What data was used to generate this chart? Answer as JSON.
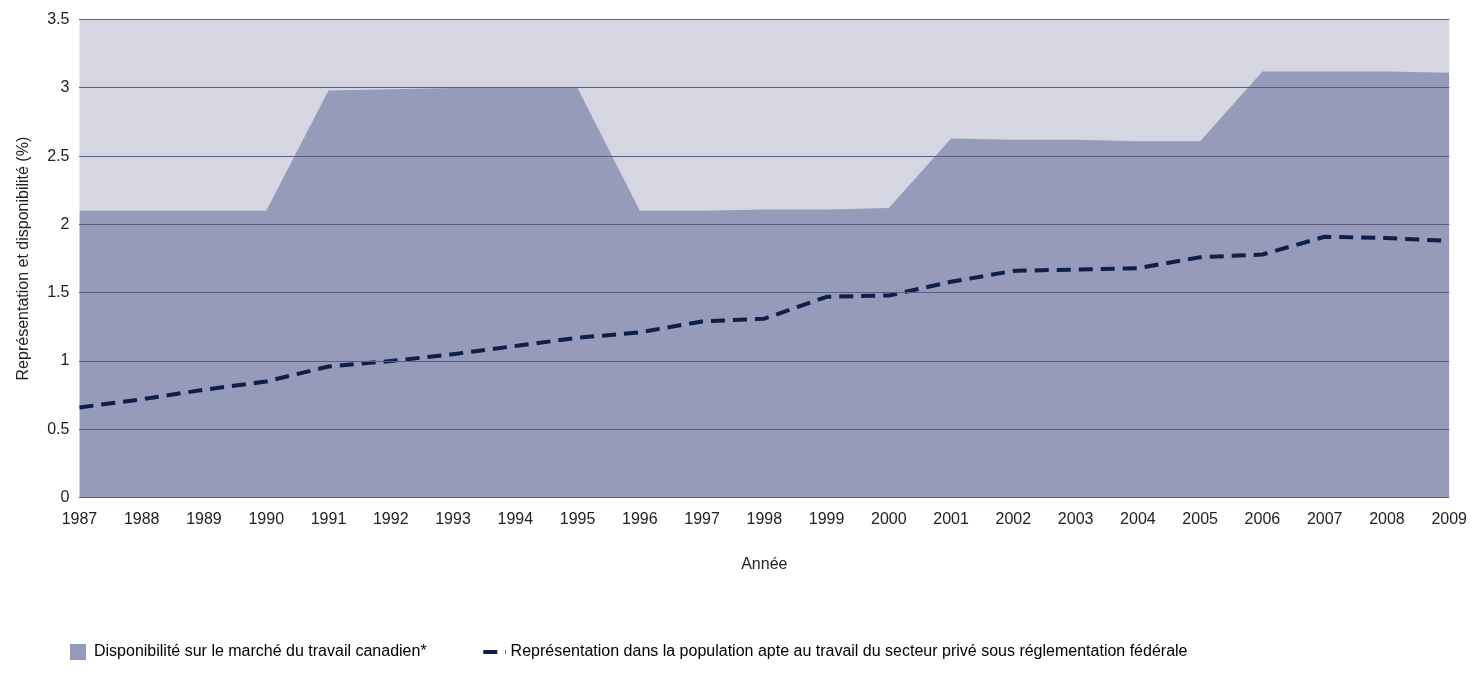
{
  "chart_data": {
    "type": "area",
    "xlabel": "Année",
    "ylabel": "Représentation et disponibilité (%)",
    "categories": [
      "1987",
      "1988",
      "1989",
      "1990",
      "1991",
      "1992",
      "1993",
      "1994",
      "1995",
      "1996",
      "1997",
      "1998",
      "1999",
      "2000",
      "2001",
      "2002",
      "2003",
      "2004",
      "2005",
      "2006",
      "2007",
      "2008",
      "2009"
    ],
    "series": [
      {
        "name": "Disponibilité sur le marché du travail canadien*",
        "color": "#959bb8",
        "values": [
          2.1,
          2.1,
          2.1,
          2.1,
          2.98,
          2.99,
          3.0,
          3.0,
          3.0,
          2.1,
          2.1,
          2.11,
          2.11,
          2.12,
          2.63,
          2.62,
          2.62,
          2.61,
          2.61,
          3.12,
          3.12,
          3.12,
          3.11
        ]
      },
      {
        "name": "Représentation dans la population apte au travail du secteur privé sous réglementation fédérale",
        "type": "line",
        "line_style": "dashed",
        "color": "#0d1f4a",
        "values": [
          0.66,
          0.72,
          0.79,
          0.85,
          0.96,
          1.0,
          1.05,
          1.11,
          1.17,
          1.21,
          1.29,
          1.31,
          1.47,
          1.48,
          1.58,
          1.66,
          1.67,
          1.68,
          1.76,
          1.78,
          1.91,
          1.9,
          1.88
        ]
      }
    ],
    "ylim": [
      0,
      3.5
    ],
    "yticks": [
      0,
      0.5,
      1,
      1.5,
      2,
      2.5,
      3,
      3.5
    ],
    "grid": "y",
    "legend": "bottom",
    "marker": "none"
  }
}
